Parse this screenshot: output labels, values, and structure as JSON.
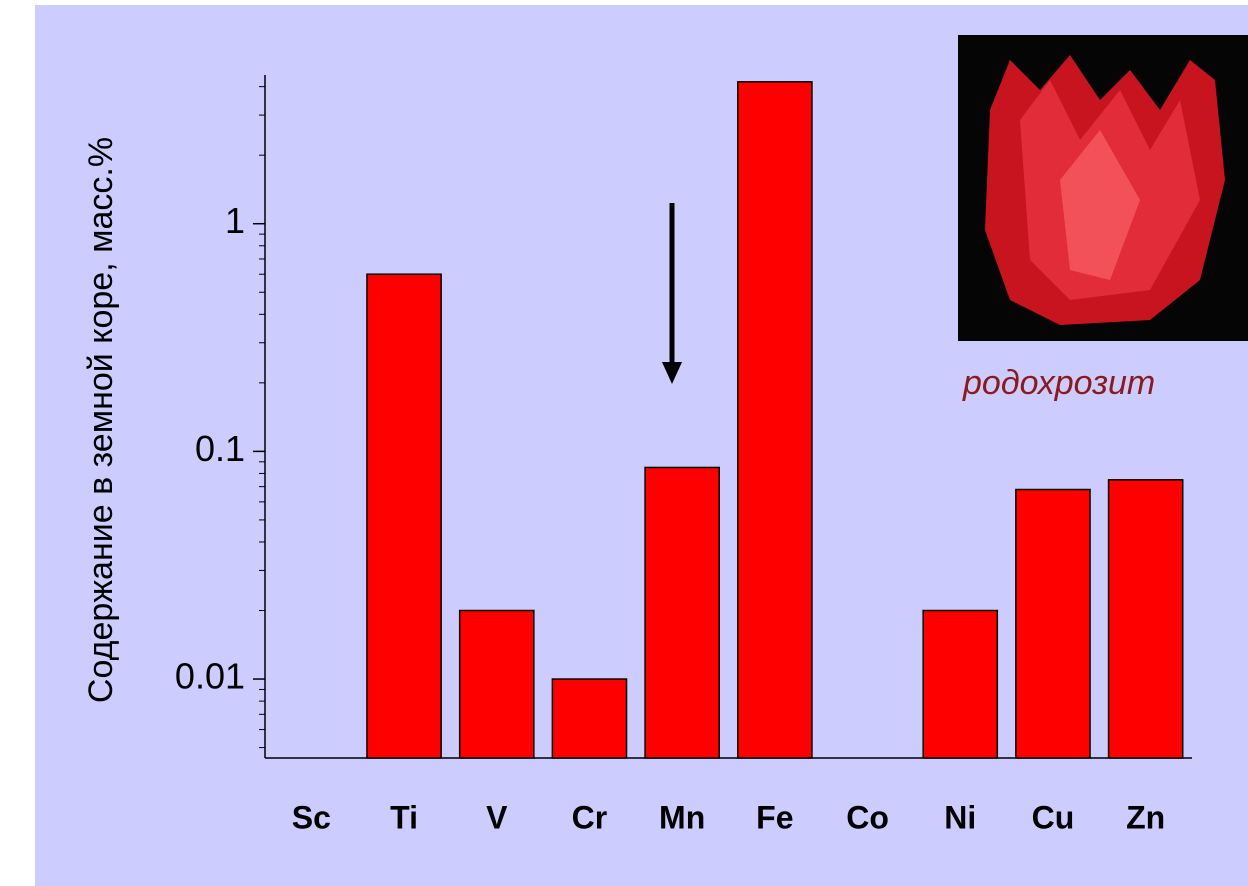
{
  "chart_data": {
    "type": "bar",
    "ylabel": "Содержание в земной коре, масс.%",
    "categories": [
      "Sc",
      "Ti",
      "V",
      "Cr",
      "Mn",
      "Fe",
      "Co",
      "Ni",
      "Cu",
      "Zn"
    ],
    "values": [
      null,
      0.6,
      0.02,
      0.01,
      0.085,
      4.2,
      null,
      0.02,
      0.068,
      0.075
    ],
    "color": "#ff0000",
    "log_scale": true,
    "ylim": [
      0.0045,
      4.5
    ],
    "yticks": [
      0.01,
      0.1,
      1
    ],
    "minor_yticks": [
      0.005,
      0.006,
      0.007,
      0.008,
      0.009,
      0.02,
      0.03,
      0.04,
      0.05,
      0.06,
      0.07,
      0.08,
      0.09,
      0.2,
      0.3,
      0.4,
      0.5,
      0.6,
      0.7,
      0.8,
      0.9,
      2,
      3,
      4
    ],
    "photo_caption": "родохрозит"
  }
}
